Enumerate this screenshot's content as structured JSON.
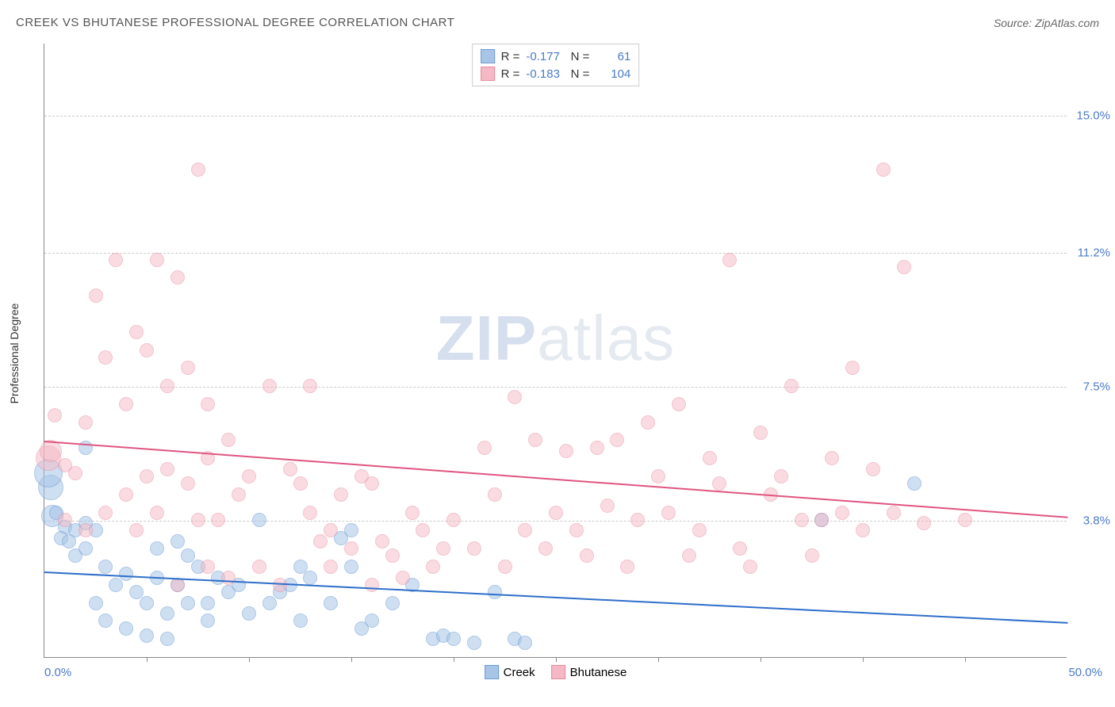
{
  "title": "CREEK VS BHUTANESE PROFESSIONAL DEGREE CORRELATION CHART",
  "source": "Source: ZipAtlas.com",
  "watermark": {
    "zip": "ZIP",
    "atlas": "atlas"
  },
  "chart": {
    "type": "scatter",
    "y_label": "Professional Degree",
    "x_range": [
      0,
      50
    ],
    "y_range": [
      0,
      17
    ],
    "x_min_label": "0.0%",
    "x_max_label": "50.0%",
    "y_ticks": [
      {
        "v": 3.8,
        "label": "3.8%"
      },
      {
        "v": 7.5,
        "label": "7.5%"
      },
      {
        "v": 11.2,
        "label": "11.2%"
      },
      {
        "v": 15.0,
        "label": "15.0%"
      }
    ],
    "x_tick_positions": [
      5,
      10,
      15,
      20,
      25,
      30,
      35,
      40,
      45
    ],
    "series": [
      {
        "name": "Creek",
        "fill": "#a8c5e8",
        "stroke": "#6b9bd1",
        "fill_opacity": 0.55,
        "trend": {
          "color": "#2e6fc9",
          "y_start": 2.4,
          "y_end": 1.0
        },
        "R": "-0.177",
        "N": "61",
        "point_radius": 9,
        "points": [
          [
            0.3,
            4.7,
            16
          ],
          [
            0.2,
            5.1,
            18
          ],
          [
            0.4,
            3.9,
            14
          ],
          [
            0.6,
            4.0
          ],
          [
            1.0,
            3.6
          ],
          [
            1.5,
            3.5
          ],
          [
            2.0,
            5.8
          ],
          [
            2.0,
            3.7
          ],
          [
            0.8,
            3.3
          ],
          [
            1.2,
            3.2
          ],
          [
            1.5,
            2.8
          ],
          [
            2.0,
            3.0
          ],
          [
            2.5,
            3.5
          ],
          [
            3.0,
            2.5
          ],
          [
            3.5,
            2.0
          ],
          [
            4.0,
            2.3
          ],
          [
            4.5,
            1.8
          ],
          [
            5.0,
            1.5
          ],
          [
            5.5,
            2.2
          ],
          [
            6.0,
            1.2
          ],
          [
            6.5,
            2.0
          ],
          [
            7.0,
            1.5
          ],
          [
            7.5,
            2.5
          ],
          [
            8.0,
            1.0
          ],
          [
            8.5,
            2.2
          ],
          [
            9.0,
            1.8
          ],
          [
            4.0,
            0.8
          ],
          [
            5.0,
            0.6
          ],
          [
            6.0,
            0.5
          ],
          [
            3.0,
            1.0
          ],
          [
            2.5,
            1.5
          ],
          [
            7.0,
            2.8
          ],
          [
            8.0,
            1.5
          ],
          [
            9.5,
            2.0
          ],
          [
            10.0,
            1.2
          ],
          [
            10.5,
            3.8
          ],
          [
            11.0,
            1.5
          ],
          [
            12.0,
            2.0
          ],
          [
            12.5,
            1.0
          ],
          [
            13.0,
            2.2
          ],
          [
            14.0,
            1.5
          ],
          [
            14.5,
            3.3
          ],
          [
            15.0,
            2.5
          ],
          [
            15.5,
            0.8
          ],
          [
            16.0,
            1.0
          ],
          [
            17.0,
            1.5
          ],
          [
            18.0,
            2.0
          ],
          [
            19.0,
            0.5
          ],
          [
            19.5,
            0.6
          ],
          [
            20.0,
            0.5
          ],
          [
            21.0,
            0.4
          ],
          [
            22.0,
            1.8
          ],
          [
            23.0,
            0.5
          ],
          [
            23.5,
            0.4
          ],
          [
            15.0,
            3.5
          ],
          [
            38.0,
            3.8
          ],
          [
            42.5,
            4.8
          ],
          [
            11.5,
            1.8
          ],
          [
            12.5,
            2.5
          ],
          [
            5.5,
            3.0
          ],
          [
            6.5,
            3.2
          ]
        ]
      },
      {
        "name": "Bhutanese",
        "fill": "#f5b8c5",
        "stroke": "#e88ba0",
        "fill_opacity": 0.5,
        "trend": {
          "color": "#e05580",
          "y_start": 6.0,
          "y_end": 3.9
        },
        "R": "-0.183",
        "N": "104",
        "point_radius": 9,
        "points": [
          [
            0.2,
            5.5,
            16
          ],
          [
            0.3,
            5.7,
            14
          ],
          [
            0.5,
            6.7
          ],
          [
            1.0,
            5.3
          ],
          [
            1.5,
            5.1
          ],
          [
            2.0,
            6.5
          ],
          [
            2.5,
            10.0
          ],
          [
            3.0,
            8.3
          ],
          [
            3.5,
            11.0
          ],
          [
            4.0,
            7.0
          ],
          [
            4.5,
            9.0
          ],
          [
            5.0,
            8.5
          ],
          [
            5.5,
            11.0
          ],
          [
            6.0,
            7.5
          ],
          [
            6.5,
            10.5
          ],
          [
            7.0,
            8.0
          ],
          [
            7.5,
            13.5
          ],
          [
            8.0,
            7.0
          ],
          [
            5.0,
            5.0
          ],
          [
            6.0,
            5.2
          ],
          [
            7.0,
            4.8
          ],
          [
            8.0,
            5.5
          ],
          [
            9.0,
            6.0
          ],
          [
            8.5,
            3.8
          ],
          [
            9.5,
            4.5
          ],
          [
            10.0,
            5.0
          ],
          [
            11.0,
            7.5
          ],
          [
            12.0,
            5.2
          ],
          [
            13.0,
            4.0
          ],
          [
            14.0,
            3.5
          ],
          [
            14.5,
            4.5
          ],
          [
            15.0,
            3.0
          ],
          [
            15.5,
            5.0
          ],
          [
            16.0,
            4.8
          ],
          [
            16.5,
            3.2
          ],
          [
            17.0,
            2.8
          ],
          [
            18.0,
            4.0
          ],
          [
            18.5,
            3.5
          ],
          [
            19.0,
            2.5
          ],
          [
            20.0,
            3.8
          ],
          [
            21.0,
            3.0
          ],
          [
            21.5,
            5.8
          ],
          [
            22.0,
            4.5
          ],
          [
            23.0,
            7.2
          ],
          [
            23.5,
            3.5
          ],
          [
            24.0,
            6.0
          ],
          [
            25.0,
            4.0
          ],
          [
            25.5,
            5.7
          ],
          [
            26.0,
            3.5
          ],
          [
            27.0,
            5.8
          ],
          [
            27.5,
            4.2
          ],
          [
            28.0,
            6.0
          ],
          [
            29.0,
            3.8
          ],
          [
            29.5,
            6.5
          ],
          [
            30.0,
            5.0
          ],
          [
            30.5,
            4.0
          ],
          [
            31.0,
            7.0
          ],
          [
            32.0,
            3.5
          ],
          [
            32.5,
            5.5
          ],
          [
            33.0,
            4.8
          ],
          [
            33.5,
            11.0
          ],
          [
            34.0,
            3.0
          ],
          [
            35.0,
            6.2
          ],
          [
            35.5,
            4.5
          ],
          [
            36.0,
            5.0
          ],
          [
            36.5,
            7.5
          ],
          [
            37.0,
            3.8
          ],
          [
            38.0,
            3.8
          ],
          [
            38.5,
            5.5
          ],
          [
            39.0,
            4.0
          ],
          [
            39.5,
            8.0
          ],
          [
            40.0,
            3.5
          ],
          [
            40.5,
            5.2
          ],
          [
            41.0,
            13.5
          ],
          [
            41.5,
            4.0
          ],
          [
            42.0,
            10.8
          ],
          [
            43.0,
            3.7
          ],
          [
            45.0,
            3.8
          ],
          [
            12.5,
            4.8
          ],
          [
            13.5,
            3.2
          ],
          [
            14.0,
            2.5
          ],
          [
            16.0,
            2.0
          ],
          [
            17.5,
            2.2
          ],
          [
            19.5,
            3.0
          ],
          [
            22.5,
            2.5
          ],
          [
            24.5,
            3.0
          ],
          [
            26.5,
            2.8
          ],
          [
            28.5,
            2.5
          ],
          [
            31.5,
            2.8
          ],
          [
            34.5,
            2.5
          ],
          [
            37.5,
            2.8
          ],
          [
            10.5,
            2.5
          ],
          [
            11.5,
            2.0
          ],
          [
            8.0,
            2.5
          ],
          [
            9.0,
            2.2
          ],
          [
            6.5,
            2.0
          ],
          [
            4.0,
            4.5
          ],
          [
            3.0,
            4.0
          ],
          [
            2.0,
            3.5
          ],
          [
            1.0,
            3.8
          ],
          [
            4.5,
            3.5
          ],
          [
            5.5,
            4.0
          ],
          [
            7.5,
            3.8
          ],
          [
            13.0,
            7.5
          ]
        ]
      }
    ]
  },
  "bottom_legend": [
    {
      "label": "Creek",
      "fill": "#a8c5e8",
      "stroke": "#6b9bd1"
    },
    {
      "label": "Bhutanese",
      "fill": "#f5b8c5",
      "stroke": "#e88ba0"
    }
  ]
}
